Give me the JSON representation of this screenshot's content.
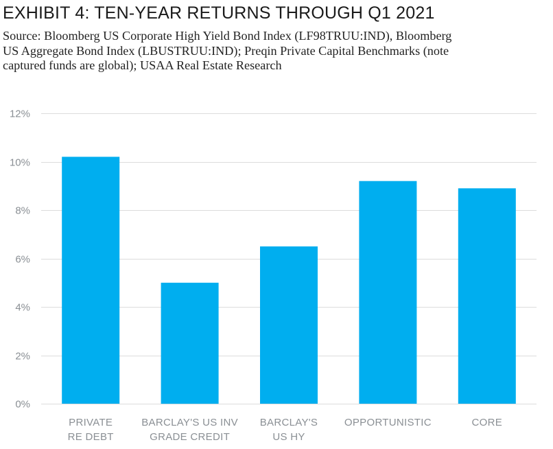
{
  "title": "EXHIBIT 4: TEN-YEAR RETURNS THROUGH Q1 2021",
  "source_lines": [
    "Source: Bloomberg US Corporate High Yield Bond Index (LF98TRUU:IND), Bloomberg",
    "US Aggregate Bond Index (LBUSTRUU:IND); Preqin Private Capital Benchmarks (note",
    "captured funds are global); USAA Real Estate Research"
  ],
  "colors": {
    "bar": "#00aeef",
    "grid": "#dcdcdc",
    "axis_text": "#8a8f94"
  },
  "chart_data": {
    "type": "bar",
    "title": "EXHIBIT 4: TEN-YEAR RETURNS THROUGH Q1 2021",
    "xlabel": "",
    "ylabel": "",
    "categories": [
      [
        "PRIVATE",
        "RE DEBT"
      ],
      [
        "BARCLAY'S US INV",
        "GRADE CREDIT"
      ],
      [
        "BARCLAY'S",
        "US HY"
      ],
      [
        "OPPORTUNISTIC"
      ],
      [
        "CORE"
      ]
    ],
    "values": [
      10.2,
      5.0,
      6.5,
      9.2,
      8.9
    ],
    "ylim": [
      0,
      12
    ],
    "yticks": [
      0,
      2,
      4,
      6,
      8,
      10,
      12
    ],
    "ytick_labels": [
      "0%",
      "2%",
      "4%",
      "6%",
      "8%",
      "10%",
      "12%"
    ],
    "grid": true,
    "legend": "none"
  }
}
